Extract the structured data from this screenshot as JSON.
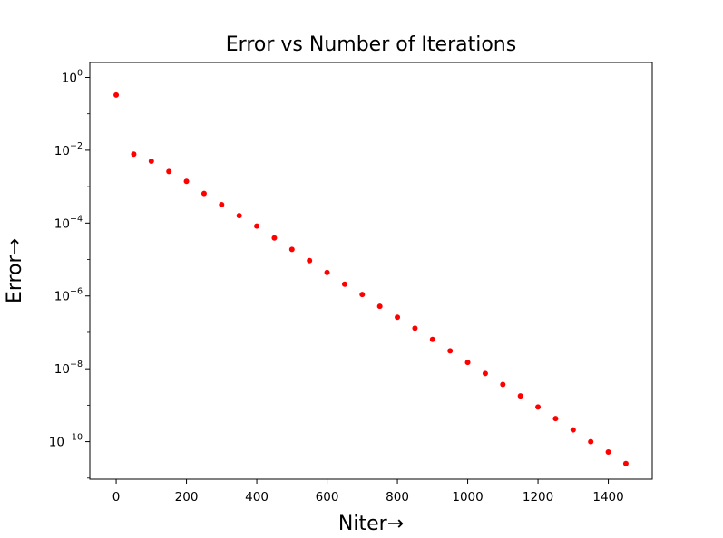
{
  "chart_data": {
    "type": "scatter",
    "title": "Error vs Number of Iterations",
    "xlabel": "Niter→",
    "ylabel": "Error→",
    "yscale": "log",
    "xlim": [
      -75,
      1525
    ],
    "ylim_exponent": [
      -11.03,
      0.41
    ],
    "grid": false,
    "marker_color": "#ff0000",
    "xticks": [
      {
        "value": 0,
        "label": "0"
      },
      {
        "value": 200,
        "label": "200"
      },
      {
        "value": 400,
        "label": "400"
      },
      {
        "value": 600,
        "label": "600"
      },
      {
        "value": 800,
        "label": "800"
      },
      {
        "value": 1000,
        "label": "1000"
      },
      {
        "value": 1200,
        "label": "1200"
      },
      {
        "value": 1400,
        "label": "1400"
      }
    ],
    "yticks": [
      {
        "exponent": 0,
        "base": "10",
        "exp": "0"
      },
      {
        "exponent": -2,
        "base": "10",
        "exp": "−2"
      },
      {
        "exponent": -4,
        "base": "10",
        "exp": "−4"
      },
      {
        "exponent": -6,
        "base": "10",
        "exp": "−6"
      },
      {
        "exponent": -8,
        "base": "10",
        "exp": "−8"
      },
      {
        "exponent": -10,
        "base": "10",
        "exp": "−10"
      }
    ],
    "x": [
      0,
      50,
      100,
      150,
      200,
      250,
      300,
      350,
      400,
      450,
      500,
      550,
      600,
      650,
      700,
      750,
      800,
      850,
      900,
      950,
      1000,
      1050,
      1100,
      1150,
      1200,
      1250,
      1300,
      1350,
      1400,
      1450
    ],
    "y": [
      0.33,
      0.0078,
      0.005,
      0.0026,
      0.0014,
      0.00065,
      0.00032,
      0.00016,
      8.3e-05,
      3.9e-05,
      1.9e-05,
      9.3e-06,
      4.4e-06,
      2.1e-06,
      1.1e-06,
      5.2e-07,
      2.6e-07,
      1.3e-07,
      6.4e-08,
      3.1e-08,
      1.5e-08,
      7.4e-09,
      3.7e-09,
      1.8e-09,
      8.9e-10,
      4.3e-10,
      2.1e-10,
      1e-10,
      5.2e-11,
      2.5e-11
    ]
  }
}
